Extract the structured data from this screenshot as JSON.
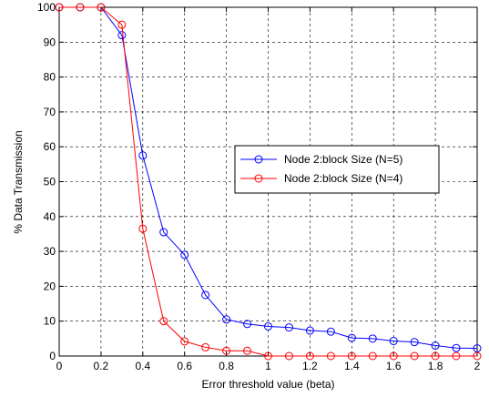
{
  "chart_data": {
    "type": "line",
    "xlabel": "Error threshold value (beta)",
    "ylabel": "% Data Transmission",
    "xlim": [
      0,
      2
    ],
    "ylim": [
      0,
      100
    ],
    "x_ticks": [
      "0",
      "0.2",
      "0.4",
      "0.6",
      "0.8",
      "1",
      "1.2",
      "1.4",
      "1.6",
      "1.8",
      "2"
    ],
    "y_ticks": [
      "0",
      "10",
      "20",
      "30",
      "40",
      "50",
      "60",
      "70",
      "80",
      "90",
      "100"
    ],
    "grid": true,
    "legend_position": "center-right",
    "x": [
      0,
      0.1,
      0.2,
      0.3,
      0.4,
      0.5,
      0.6,
      0.7,
      0.8,
      0.9,
      1.0,
      1.1,
      1.2,
      1.3,
      1.4,
      1.5,
      1.6,
      1.7,
      1.8,
      1.9,
      2.0
    ],
    "series": [
      {
        "name": "Node 2:block Size (N=5)",
        "color": "#0000ff",
        "values": [
          100,
          100,
          100,
          92,
          57.5,
          35.5,
          29,
          17.5,
          10.5,
          9.2,
          8.5,
          8.2,
          7.3,
          7.0,
          5.2,
          5.0,
          4.3,
          4.0,
          3.0,
          2.3,
          2.2
        ]
      },
      {
        "name": "Node 2:block Size (N=4)",
        "color": "#ff0000",
        "values": [
          100,
          100,
          100,
          95,
          36.5,
          10,
          4.2,
          2.5,
          1.5,
          1.5,
          0,
          0,
          0,
          0,
          0,
          0,
          0,
          0,
          0,
          0,
          0
        ]
      }
    ]
  }
}
